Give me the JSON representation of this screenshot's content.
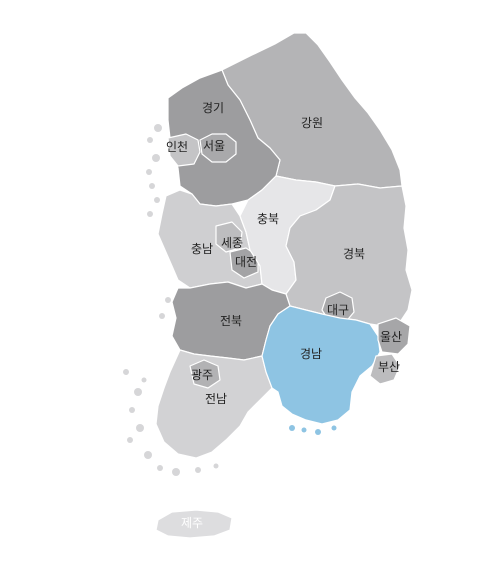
{
  "colors": {
    "dark": "#9d9d9f",
    "mid": "#b9b9bb",
    "light": "#cfcfd1",
    "lighter": "#e6e6e8",
    "highlight": "#8ec4e3",
    "island": "#dddddf"
  },
  "regions": [
    {
      "id": "gyeonggi",
      "label": "경기",
      "fill": "#9d9d9f"
    },
    {
      "id": "seoul",
      "label": "서울",
      "fill": "#a9a9ab"
    },
    {
      "id": "incheon",
      "label": "인천",
      "fill": "#c4c4c6"
    },
    {
      "id": "gangwon",
      "label": "강원",
      "fill": "#b4b4b6"
    },
    {
      "id": "chungbuk",
      "label": "충북",
      "fill": "#e6e6e8"
    },
    {
      "id": "chungnam",
      "label": "충남",
      "fill": "#cfcfd1"
    },
    {
      "id": "sejong",
      "label": "세종",
      "fill": "#bdbdbf"
    },
    {
      "id": "daejeon",
      "label": "대전",
      "fill": "#a3a3a5"
    },
    {
      "id": "gyeongbuk",
      "label": "경북",
      "fill": "#c4c4c6"
    },
    {
      "id": "daegu",
      "label": "대구",
      "fill": "#a8a8aa"
    },
    {
      "id": "jeonbuk",
      "label": "전북",
      "fill": "#9d9d9f"
    },
    {
      "id": "gwangju",
      "label": "광주",
      "fill": "#b2b2b4"
    },
    {
      "id": "jeonnam",
      "label": "전남",
      "fill": "#d2d2d4"
    },
    {
      "id": "gyeongnam",
      "label": "경남",
      "fill": "#8ec4e3"
    },
    {
      "id": "ulsan",
      "label": "울산",
      "fill": "#a6a6a8"
    },
    {
      "id": "busan",
      "label": "부산",
      "fill": "#bcbcbe"
    },
    {
      "id": "jeju",
      "label": "제주",
      "fill": "#dddddf"
    }
  ]
}
